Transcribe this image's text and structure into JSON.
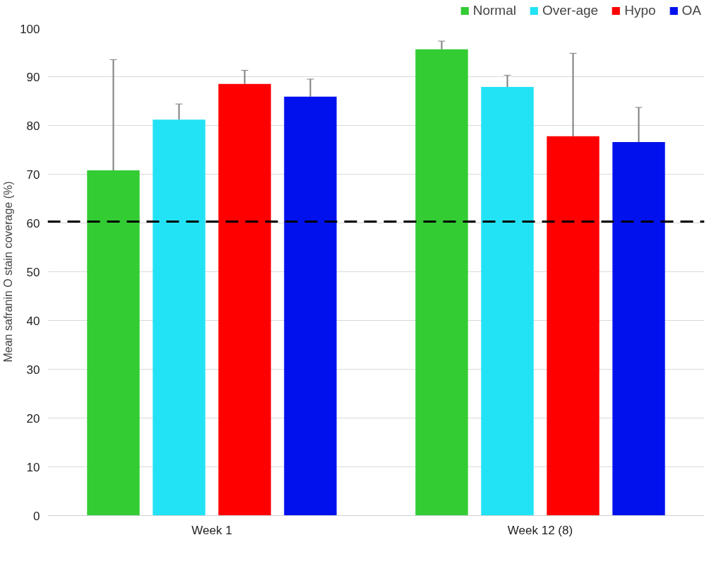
{
  "chart_data": {
    "type": "bar",
    "ylabel": "Mean safranin O stain coverage (%)",
    "categories": [
      "Week 1",
      "Week 12 (8)"
    ],
    "series": [
      {
        "name": "Normal",
        "color": "#33cc33",
        "values": [
          70.8,
          95.6
        ],
        "errors": [
          [
            70.8,
            93.5
          ],
          [
            95.6,
            97.3
          ]
        ]
      },
      {
        "name": "Over-age",
        "color": "#22e3f5",
        "values": [
          81.2,
          87.9
        ],
        "errors": [
          [
            81.2,
            84.4
          ],
          [
            87.9,
            90.3
          ]
        ]
      },
      {
        "name": "Hypo",
        "color": "#ff0000",
        "values": [
          88.5,
          77.8
        ],
        "errors": [
          [
            88.5,
            91.3
          ],
          [
            77.8,
            94.8
          ]
        ]
      },
      {
        "name": "OA",
        "color": "#0011ee",
        "values": [
          85.9,
          76.6
        ],
        "errors": [
          [
            85.9,
            89.5
          ],
          [
            76.6,
            83.7
          ]
        ]
      }
    ],
    "ylim": [
      0,
      100
    ],
    "yticks": [
      0,
      10,
      20,
      30,
      40,
      50,
      60,
      70,
      80,
      90,
      100
    ],
    "ref_lines": [
      {
        "axis": "y",
        "value": 60.3,
        "label": null,
        "color": "#000000",
        "line_style": "dashed"
      }
    ],
    "grid": "y",
    "legend": "top right"
  }
}
